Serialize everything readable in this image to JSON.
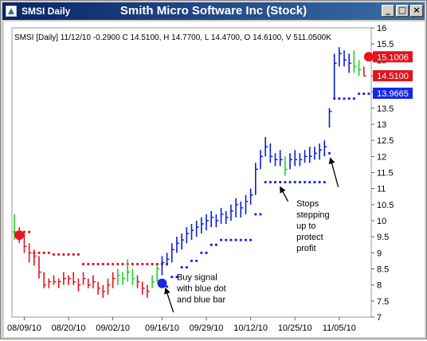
{
  "window": {
    "label": "SMSI Daily",
    "title": "Smith Micro Software Inc (Stock)",
    "minimize_glyph": "_",
    "maximize_glyph": "□",
    "close_glyph": "×"
  },
  "chart_data": {
    "type": "ohlc",
    "title": "Smith Micro Software Inc (Stock)",
    "info_line": "SMSI [Daily] 11/12/10  -0.2900 C 14.5100, H 14.7700, L 14.4700, O 14.6100, V 511.0500K",
    "ylim": [
      7,
      16
    ],
    "yticks": [
      "16",
      "15.5",
      "15",
      "14.5",
      "14",
      "13.5",
      "13",
      "12.5",
      "12",
      "11.5",
      "11",
      "10.5",
      "10",
      "9.5",
      "9",
      "8.5",
      "8",
      "7.5",
      "7"
    ],
    "xticks": [
      {
        "label": "08/09/10",
        "index": 2
      },
      {
        "label": "08/20/10",
        "index": 11
      },
      {
        "label": "09/02/10",
        "index": 20
      },
      {
        "label": "09/16/10",
        "index": 30
      },
      {
        "label": "09/29/10",
        "index": 39
      },
      {
        "label": "10/12/10",
        "index": 48
      },
      {
        "label": "10/25/10",
        "index": 57
      },
      {
        "label": "11/05/10",
        "index": 66
      }
    ],
    "n_slots": 73,
    "bar_colors": {
      "red": "#e0141e",
      "green": "#1ed21e",
      "blue": "#0a1ed2"
    },
    "bars": [
      {
        "h": 10.2,
        "l": 9.4,
        "c": 9.6,
        "color": "green"
      },
      {
        "h": 9.8,
        "l": 9.3,
        "c": 9.5,
        "color": "red"
      },
      {
        "h": 9.6,
        "l": 9.0,
        "c": 9.2,
        "color": "red"
      },
      {
        "h": 9.3,
        "l": 8.7,
        "c": 9.0,
        "color": "red"
      },
      {
        "h": 9.1,
        "l": 8.6,
        "c": 8.9,
        "color": "red"
      },
      {
        "h": 8.9,
        "l": 8.2,
        "c": 8.4,
        "color": "red"
      },
      {
        "h": 8.4,
        "l": 7.9,
        "c": 8.0,
        "color": "red"
      },
      {
        "h": 8.2,
        "l": 7.9,
        "c": 8.1,
        "color": "red"
      },
      {
        "h": 8.3,
        "l": 8.0,
        "c": 8.1,
        "color": "red"
      },
      {
        "h": 8.2,
        "l": 7.9,
        "c": 8.1,
        "color": "red"
      },
      {
        "h": 8.4,
        "l": 8.0,
        "c": 8.2,
        "color": "red"
      },
      {
        "h": 8.3,
        "l": 8.0,
        "c": 8.2,
        "color": "red"
      },
      {
        "h": 8.4,
        "l": 8.0,
        "c": 8.1,
        "color": "red"
      },
      {
        "h": 8.2,
        "l": 7.8,
        "c": 8.0,
        "color": "red"
      },
      {
        "h": 8.4,
        "l": 8.0,
        "c": 8.2,
        "color": "red"
      },
      {
        "h": 8.2,
        "l": 7.9,
        "c": 8.0,
        "color": "red"
      },
      {
        "h": 8.3,
        "l": 7.9,
        "c": 8.1,
        "color": "red"
      },
      {
        "h": 8.1,
        "l": 7.7,
        "c": 7.9,
        "color": "red"
      },
      {
        "h": 8.0,
        "l": 7.6,
        "c": 7.8,
        "color": "red"
      },
      {
        "h": 8.2,
        "l": 7.7,
        "c": 8.0,
        "color": "red"
      },
      {
        "h": 8.4,
        "l": 7.9,
        "c": 8.2,
        "color": "red"
      },
      {
        "h": 8.5,
        "l": 8.0,
        "c": 8.3,
        "color": "green"
      },
      {
        "h": 8.4,
        "l": 8.0,
        "c": 8.2,
        "color": "green"
      },
      {
        "h": 8.8,
        "l": 8.1,
        "c": 8.4,
        "color": "green"
      },
      {
        "h": 8.5,
        "l": 8.0,
        "c": 8.2,
        "color": "green"
      },
      {
        "h": 8.3,
        "l": 7.9,
        "c": 8.1,
        "color": "red"
      },
      {
        "h": 8.1,
        "l": 7.7,
        "c": 7.9,
        "color": "red"
      },
      {
        "h": 8.0,
        "l": 7.6,
        "c": 7.8,
        "color": "red"
      },
      {
        "h": 8.3,
        "l": 7.9,
        "c": 8.1,
        "color": "green"
      },
      {
        "h": 8.6,
        "l": 8.1,
        "c": 8.5,
        "color": "green"
      },
      {
        "h": 8.9,
        "l": 8.3,
        "c": 8.7,
        "color": "blue"
      },
      {
        "h": 9.0,
        "l": 8.6,
        "c": 8.8,
        "color": "blue"
      },
      {
        "h": 9.3,
        "l": 8.7,
        "c": 9.1,
        "color": "blue"
      },
      {
        "h": 9.5,
        "l": 9.0,
        "c": 9.3,
        "color": "blue"
      },
      {
        "h": 9.6,
        "l": 9.1,
        "c": 9.4,
        "color": "blue"
      },
      {
        "h": 9.8,
        "l": 9.3,
        "c": 9.6,
        "color": "blue"
      },
      {
        "h": 9.9,
        "l": 9.4,
        "c": 9.7,
        "color": "blue"
      },
      {
        "h": 10.0,
        "l": 9.5,
        "c": 9.8,
        "color": "blue"
      },
      {
        "h": 10.1,
        "l": 9.6,
        "c": 9.9,
        "color": "blue"
      },
      {
        "h": 10.2,
        "l": 9.7,
        "c": 10.0,
        "color": "blue"
      },
      {
        "h": 10.3,
        "l": 9.8,
        "c": 10.1,
        "color": "blue"
      },
      {
        "h": 10.2,
        "l": 9.8,
        "c": 10.0,
        "color": "blue"
      },
      {
        "h": 10.4,
        "l": 9.9,
        "c": 10.2,
        "color": "blue"
      },
      {
        "h": 10.3,
        "l": 9.9,
        "c": 10.1,
        "color": "blue"
      },
      {
        "h": 10.5,
        "l": 10.0,
        "c": 10.3,
        "color": "blue"
      },
      {
        "h": 10.7,
        "l": 10.1,
        "c": 10.5,
        "color": "blue"
      },
      {
        "h": 10.6,
        "l": 10.1,
        "c": 10.4,
        "color": "blue"
      },
      {
        "h": 10.8,
        "l": 10.2,
        "c": 10.6,
        "color": "blue"
      },
      {
        "h": 11.0,
        "l": 10.5,
        "c": 10.8,
        "color": "blue"
      },
      {
        "h": 11.8,
        "l": 10.8,
        "c": 11.6,
        "color": "blue"
      },
      {
        "h": 12.2,
        "l": 11.6,
        "c": 12.0,
        "color": "blue"
      },
      {
        "h": 12.6,
        "l": 12.0,
        "c": 12.3,
        "color": "blue"
      },
      {
        "h": 12.4,
        "l": 11.8,
        "c": 12.0,
        "color": "blue"
      },
      {
        "h": 12.1,
        "l": 11.7,
        "c": 11.9,
        "color": "blue"
      },
      {
        "h": 12.2,
        "l": 11.7,
        "c": 11.9,
        "color": "blue"
      },
      {
        "h": 12.0,
        "l": 11.4,
        "c": 11.6,
        "color": "green"
      },
      {
        "h": 12.1,
        "l": 11.6,
        "c": 11.9,
        "color": "blue"
      },
      {
        "h": 12.2,
        "l": 11.7,
        "c": 11.9,
        "color": "blue"
      },
      {
        "h": 12.1,
        "l": 11.7,
        "c": 11.9,
        "color": "blue"
      },
      {
        "h": 12.2,
        "l": 11.8,
        "c": 12.0,
        "color": "blue"
      },
      {
        "h": 12.3,
        "l": 11.8,
        "c": 12.0,
        "color": "blue"
      },
      {
        "h": 12.3,
        "l": 11.9,
        "c": 12.1,
        "color": "blue"
      },
      {
        "h": 12.4,
        "l": 11.9,
        "c": 12.2,
        "color": "blue"
      },
      {
        "h": 12.5,
        "l": 12.0,
        "c": 12.3,
        "color": "blue"
      },
      {
        "h": 13.5,
        "l": 12.9,
        "c": 13.4,
        "color": "blue"
      },
      {
        "h": 15.2,
        "l": 13.8,
        "c": 14.9,
        "color": "blue"
      },
      {
        "h": 15.4,
        "l": 14.8,
        "c": 15.2,
        "color": "blue"
      },
      {
        "h": 15.3,
        "l": 14.8,
        "c": 15.0,
        "color": "blue"
      },
      {
        "h": 15.2,
        "l": 14.6,
        "c": 14.9,
        "color": "blue"
      },
      {
        "h": 15.3,
        "l": 14.6,
        "c": 14.8,
        "color": "green"
      },
      {
        "h": 15.0,
        "l": 14.5,
        "c": 14.7,
        "color": "green"
      },
      {
        "h": 14.8,
        "l": 14.5,
        "c": 14.5,
        "color": "red"
      }
    ],
    "red_stops": [
      {
        "start": 0,
        "end": 3,
        "value": 9.65
      },
      {
        "start": 4,
        "end": 7,
        "value": 9.0
      },
      {
        "start": 8,
        "end": 13,
        "value": 8.95
      },
      {
        "start": 14,
        "end": 31,
        "value": 8.65
      }
    ],
    "blue_stops": [
      {
        "start": 30,
        "end": 31,
        "value": 7.95
      },
      {
        "start": 32,
        "end": 33,
        "value": 8.25
      },
      {
        "start": 34,
        "end": 35,
        "value": 8.55
      },
      {
        "start": 36,
        "end": 37,
        "value": 8.75
      },
      {
        "start": 38,
        "end": 39,
        "value": 9.0
      },
      {
        "start": 40,
        "end": 41,
        "value": 9.25
      },
      {
        "start": 42,
        "end": 48,
        "value": 9.4
      },
      {
        "start": 49,
        "end": 50,
        "value": 10.2
      },
      {
        "start": 51,
        "end": 63,
        "value": 11.2
      },
      {
        "start": 64,
        "end": 64,
        "value": 12.1
      },
      {
        "start": 65,
        "end": 69,
        "value": 13.8
      },
      {
        "start": 70,
        "end": 72,
        "value": 13.95
      }
    ],
    "signal_dots": [
      {
        "index": 1,
        "value": 9.55,
        "color": "#e8141e"
      },
      {
        "index": 30,
        "value": 8.05,
        "color": "#1428e6"
      },
      {
        "index": 72,
        "value": 15.1,
        "color": "#e8141e"
      }
    ],
    "price_badges": [
      {
        "label": "15.1006",
        "value": 15.1006,
        "bg": "#e0141e"
      },
      {
        "label": "14.5100",
        "value": 14.51,
        "bg": "#e0141e"
      },
      {
        "label": "13.9665",
        "value": 13.9665,
        "bg": "#1428e6"
      }
    ],
    "annotations": [
      {
        "lines": [
          "Buy signal",
          "with blue dot",
          "and blue bar"
        ],
        "text_index": 33,
        "text_value": 8.15,
        "arrow_from": [
          32.3,
          7.15
        ],
        "arrow_to": [
          30.7,
          7.9
        ]
      },
      {
        "lines": [
          "Stops",
          "stepping",
          "up to",
          "protect",
          "profit"
        ],
        "text_index": 57.3,
        "text_value": 10.45,
        "arrow_from": [
          55.6,
          10.6
        ],
        "arrow_to": [
          54.0,
          11.05
        ]
      }
    ],
    "extra_arrows": [
      {
        "from": [
          65.8,
          11.05
        ],
        "to": [
          64.2,
          11.95
        ]
      }
    ]
  }
}
